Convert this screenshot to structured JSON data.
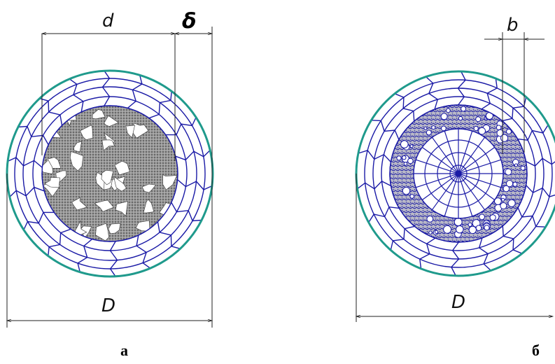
{
  "figure_a": {
    "caption": "а",
    "label_d": "d",
    "label_delta": "δ",
    "label_D": "D"
  },
  "figure_b": {
    "caption": "б",
    "label_b": "b",
    "label_D": "D"
  },
  "colors": {
    "outer_ring": "#1f9a8c",
    "grid": "#1a1aa6",
    "dim_line": "#222222",
    "fill_gray": "#8a8a8a",
    "fill_blue": "#1a1aa6"
  }
}
